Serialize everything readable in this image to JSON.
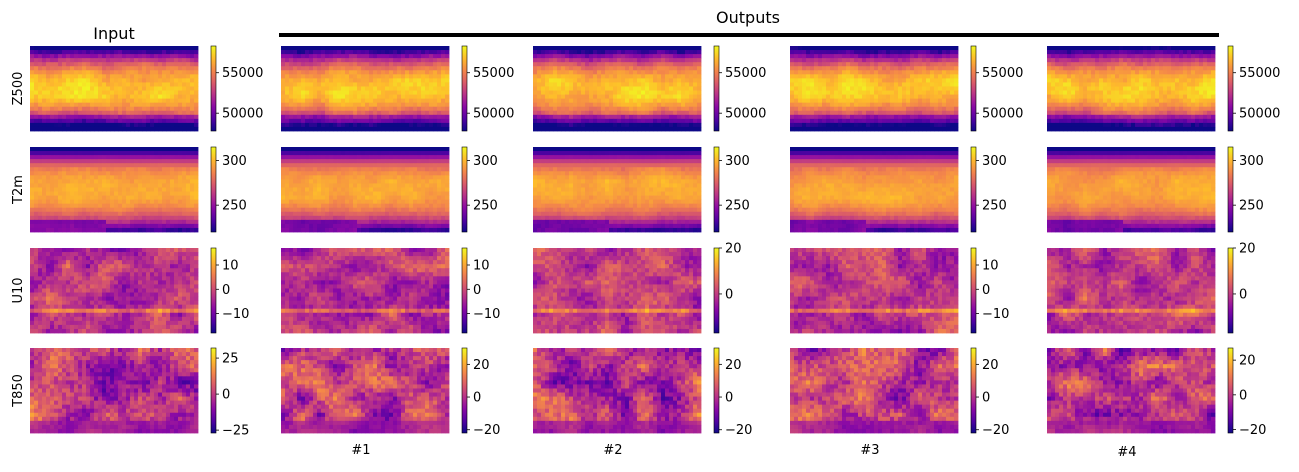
{
  "chart_data": {
    "type": "heatmap",
    "colormap": "plasma",
    "colormap_stops": [
      "#0d0887",
      "#5302a3",
      "#8b0aa5",
      "#b83289",
      "#db5c68",
      "#f48849",
      "#febd2a",
      "#f0f921"
    ],
    "input_title": "Input",
    "outputs_title": "Outputs",
    "columns": [
      "",
      "#1",
      "#2",
      "#3",
      "#4"
    ],
    "rows": [
      {
        "label": "Z500",
        "pattern": "z500",
        "colorbars": [
          {
            "min": 47800,
            "max": 58300,
            "ticks": [
              {
                "v": 50000,
                "t": "50000"
              },
              {
                "v": 55000,
                "t": "55000"
              }
            ]
          },
          {
            "min": 47800,
            "max": 58300,
            "ticks": [
              {
                "v": 50000,
                "t": "50000"
              },
              {
                "v": 55000,
                "t": "55000"
              }
            ]
          },
          {
            "min": 47800,
            "max": 58300,
            "ticks": [
              {
                "v": 50000,
                "t": "50000"
              },
              {
                "v": 55000,
                "t": "55000"
              }
            ]
          },
          {
            "min": 47800,
            "max": 58300,
            "ticks": [
              {
                "v": 50000,
                "t": "50000"
              },
              {
                "v": 55000,
                "t": "55000"
              }
            ]
          },
          {
            "min": 47800,
            "max": 58300,
            "ticks": [
              {
                "v": 50000,
                "t": "50000"
              },
              {
                "v": 55000,
                "t": "55000"
              }
            ]
          }
        ]
      },
      {
        "label": "T2m",
        "pattern": "t2m",
        "colorbars": [
          {
            "min": 220,
            "max": 315,
            "ticks": [
              {
                "v": 250,
                "t": "250"
              },
              {
                "v": 300,
                "t": "300"
              }
            ]
          },
          {
            "min": 220,
            "max": 315,
            "ticks": [
              {
                "v": 250,
                "t": "250"
              },
              {
                "v": 300,
                "t": "300"
              }
            ]
          },
          {
            "min": 220,
            "max": 315,
            "ticks": [
              {
                "v": 250,
                "t": "250"
              },
              {
                "v": 300,
                "t": "300"
              }
            ]
          },
          {
            "min": 220,
            "max": 315,
            "ticks": [
              {
                "v": 250,
                "t": "250"
              },
              {
                "v": 300,
                "t": "300"
              }
            ]
          },
          {
            "min": 220,
            "max": 315,
            "ticks": [
              {
                "v": 250,
                "t": "250"
              },
              {
                "v": 300,
                "t": "300"
              }
            ]
          }
        ]
      },
      {
        "label": "U10",
        "pattern": "u10",
        "colorbars": [
          {
            "min": -18,
            "max": 17,
            "ticks": [
              {
                "v": -10,
                "t": "−10"
              },
              {
                "v": 0,
                "t": "0"
              },
              {
                "v": 10,
                "t": "10"
              }
            ]
          },
          {
            "min": -18,
            "max": 17,
            "ticks": [
              {
                "v": -10,
                "t": "−10"
              },
              {
                "v": 0,
                "t": "0"
              },
              {
                "v": 10,
                "t": "10"
              }
            ]
          },
          {
            "min": -17,
            "max": 20,
            "ticks": [
              {
                "v": 0,
                "t": "0"
              },
              {
                "v": 20,
                "t": "20"
              }
            ]
          },
          {
            "min": -18,
            "max": 17,
            "ticks": [
              {
                "v": -10,
                "t": "−10"
              },
              {
                "v": 0,
                "t": "0"
              },
              {
                "v": 10,
                "t": "10"
              }
            ]
          },
          {
            "min": -17,
            "max": 20,
            "ticks": [
              {
                "v": 0,
                "t": "0"
              },
              {
                "v": 20,
                "t": "20"
              }
            ]
          }
        ]
      },
      {
        "label": "T850",
        "pattern": "t850",
        "colorbars": [
          {
            "min": -27,
            "max": 32,
            "ticks": [
              {
                "v": -25,
                "t": "−25"
              },
              {
                "v": 0,
                "t": "0"
              },
              {
                "v": 25,
                "t": "25"
              }
            ]
          },
          {
            "min": -22,
            "max": 30,
            "ticks": [
              {
                "v": -20,
                "t": "−20"
              },
              {
                "v": 0,
                "t": "0"
              },
              {
                "v": 20,
                "t": "20"
              }
            ]
          },
          {
            "min": -22,
            "max": 30,
            "ticks": [
              {
                "v": -20,
                "t": "−20"
              },
              {
                "v": 0,
                "t": "0"
              },
              {
                "v": 20,
                "t": "20"
              }
            ]
          },
          {
            "min": -22,
            "max": 30,
            "ticks": [
              {
                "v": -20,
                "t": "−20"
              },
              {
                "v": 0,
                "t": "0"
              },
              {
                "v": 20,
                "t": "20"
              }
            ]
          },
          {
            "min": -22,
            "max": 27,
            "ticks": [
              {
                "v": -20,
                "t": "−20"
              },
              {
                "v": 0,
                "t": "0"
              },
              {
                "v": 20,
                "t": "20"
              }
            ]
          }
        ]
      }
    ]
  }
}
